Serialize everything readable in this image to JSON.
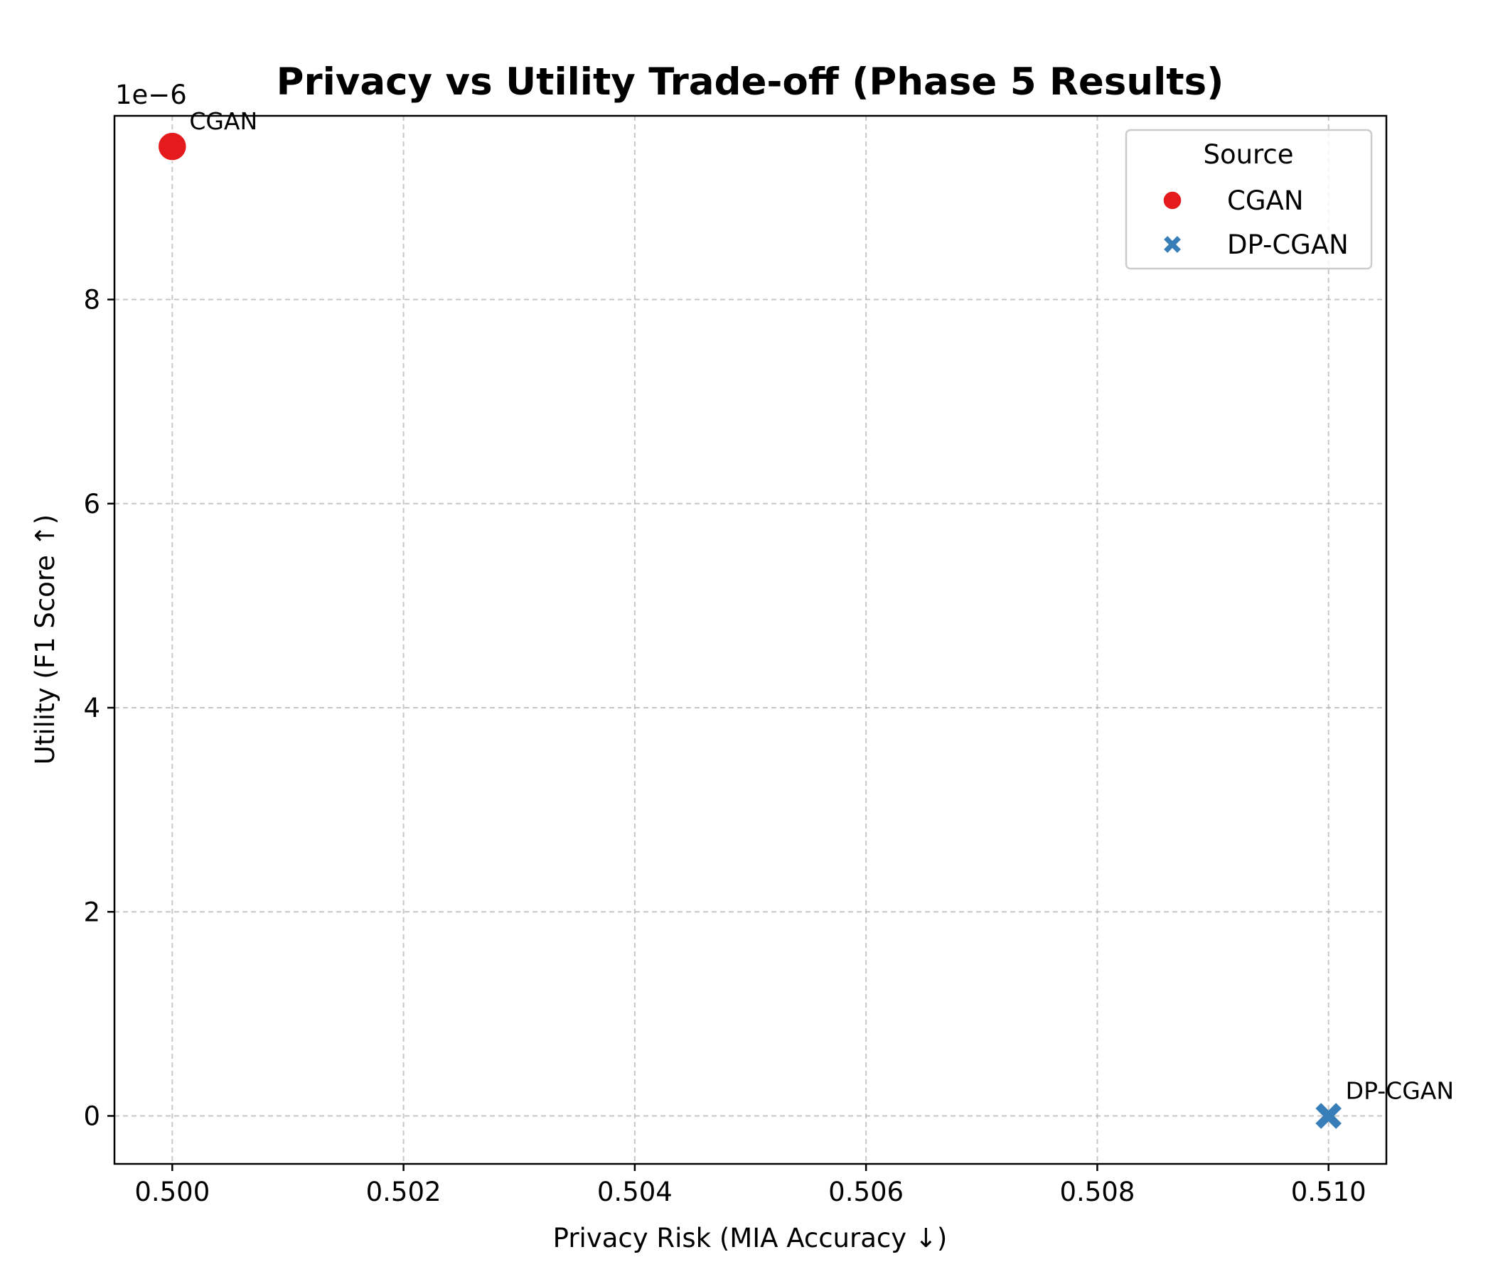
{
  "chart_data": {
    "type": "scatter",
    "title": "Privacy vs Utility Trade-off (Phase 5 Results)",
    "xlabel": "Privacy Risk (MIA Accuracy ↓)",
    "ylabel": "Utility (F1 Score ↑)",
    "y_offset_label": "1e−6",
    "xlim": [
      0.4995,
      0.5105
    ],
    "ylim": [
      -0.47,
      9.8
    ],
    "y_scale_note": "y values in units of 1e-6",
    "x_ticks": [
      0.5,
      0.502,
      0.504,
      0.506,
      0.508,
      0.51
    ],
    "x_tick_labels": [
      "0.500",
      "0.502",
      "0.504",
      "0.506",
      "0.508",
      "0.510"
    ],
    "y_ticks": [
      0,
      2,
      4,
      6,
      8
    ],
    "y_tick_labels": [
      "0",
      "2",
      "4",
      "6",
      "8"
    ],
    "grid": true,
    "legend": {
      "title": "Source",
      "placement": "top-right",
      "entries": [
        {
          "label": "CGAN",
          "marker": "circle",
          "color": "#e41a1c"
        },
        {
          "label": "DP-CGAN",
          "marker": "x",
          "color": "#377eb8"
        }
      ]
    },
    "series": [
      {
        "name": "CGAN",
        "marker": "circle",
        "color": "#e41a1c",
        "points": [
          {
            "x": 0.5,
            "y": 9.5,
            "label": "CGAN"
          }
        ]
      },
      {
        "name": "DP-CGAN",
        "marker": "x",
        "color": "#377eb8",
        "points": [
          {
            "x": 0.51,
            "y": 0.0,
            "label": "DP-CGAN"
          }
        ]
      }
    ]
  }
}
